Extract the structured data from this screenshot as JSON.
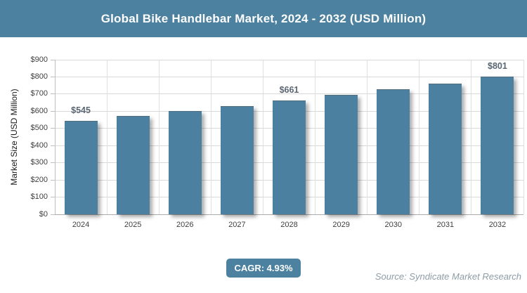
{
  "header": {
    "title": "Global Bike Handlebar Market, 2024 - 2032 (USD Million)"
  },
  "chart_data": {
    "type": "bar",
    "title": "Global Bike Handlebar Market, 2024 - 2032 (USD Million)",
    "categories": [
      "2024",
      "2025",
      "2026",
      "2027",
      "2028",
      "2029",
      "2030",
      "2031",
      "2032"
    ],
    "values": [
      545,
      572,
      600,
      630,
      661,
      694,
      727,
      762,
      801
    ],
    "data_labels": [
      {
        "index": 0,
        "text": "$545"
      },
      {
        "index": 4,
        "text": "$661"
      },
      {
        "index": 8,
        "text": "$801"
      }
    ],
    "xlabel": "",
    "ylabel": "Market Size (USD Million)",
    "ylim": [
      0,
      900
    ],
    "ytick_step": 100,
    "ytick_prefix": "$",
    "ytick_labels": [
      "$0",
      "$100",
      "$200",
      "$300",
      "$400",
      "$500",
      "$600",
      "$700",
      "$800",
      "$900"
    ],
    "grid": true,
    "legend": "none",
    "bar_color": "#4C80A0"
  },
  "footer": {
    "cagr_label": "CAGR: 4.93%",
    "source": "Source: Syndicate Market Research"
  },
  "colors": {
    "accent": "#4C81A0",
    "bar": "#4C80A0",
    "grid": "#D9D9D9",
    "grid_vertical": "#DEE1E3",
    "axis_line": "#BFBFBF",
    "baseline": "#ABABAB",
    "tick_label": "#3F3F3F",
    "axis_title": "#1A1A1A",
    "data_label": "#5A6673",
    "source_text": "#8D9CA6"
  }
}
